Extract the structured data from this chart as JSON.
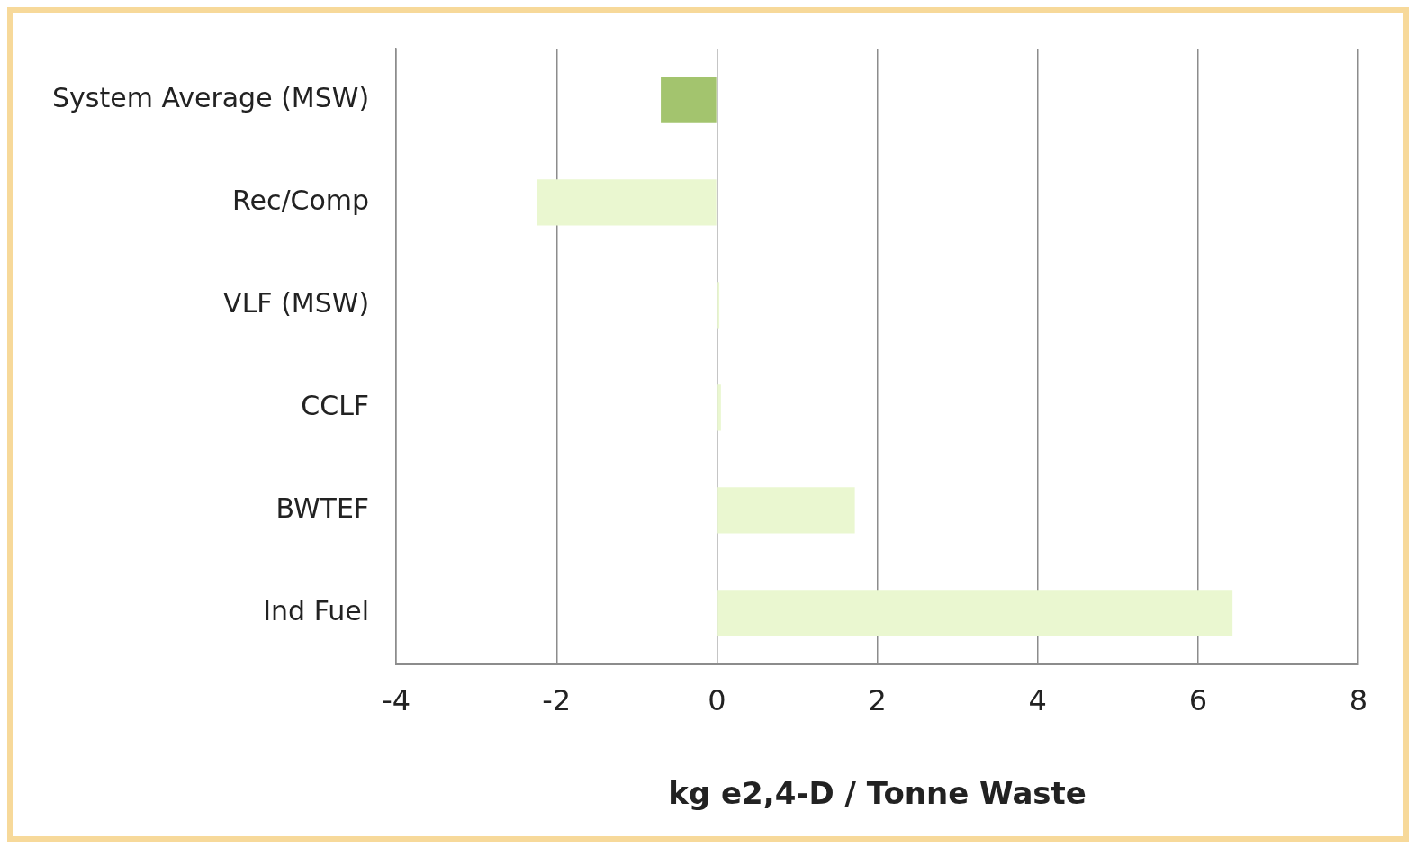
{
  "chart_data": {
    "type": "bar",
    "orientation": "horizontal",
    "xlabel": "kg e2,4-D / Tonne Waste",
    "categories": [
      "System Average (MSW)",
      "Rec/Comp",
      "VLF (MSW)",
      "CCLF",
      "BWTEF",
      "Ind Fuel"
    ],
    "values": [
      -0.7,
      -2.25,
      0.03,
      0.05,
      1.72,
      6.43
    ],
    "colors": [
      "#a3c46e",
      "#eaf7d0",
      "#eaf7d0",
      "#eaf7d0",
      "#eaf7d0",
      "#eaf7d0"
    ],
    "xlim": [
      -4,
      8
    ],
    "xticks": [
      -4,
      -2,
      0,
      2,
      4,
      6,
      8
    ],
    "grid": "x",
    "legend": false
  }
}
